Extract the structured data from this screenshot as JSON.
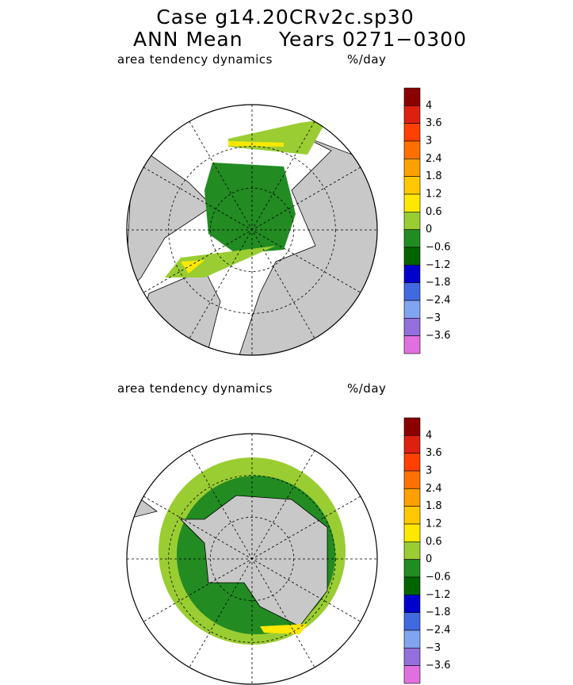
{
  "header": {
    "title": "Case g14.20CRv2c.sp30",
    "subtitle_left": "ANN Mean",
    "subtitle_right": "Years 0271−0300"
  },
  "colorbar": {
    "colors": [
      "#8b0000",
      "#dd2010",
      "#ff4000",
      "#ff7000",
      "#ffa000",
      "#ffc800",
      "#ffe800",
      "#9acd32",
      "#228b22",
      "#006400",
      "#0000cd",
      "#4169e1",
      "#80a4f0",
      "#9370db",
      "#e070e0"
    ]
  },
  "panels": [
    {
      "label": "area tendency dynamics",
      "units": "%/day",
      "colorbar_labels": [
        "4",
        "3.6",
        "3",
        "2.4",
        "1.8",
        "1.2",
        "0.6",
        "0",
        "−0.6",
        "−1.2",
        "−1.8",
        "−2.4",
        "−3",
        "−3.6"
      ]
    },
    {
      "label": "area tendency dynamics",
      "units": "%/day",
      "colorbar_labels": [
        "4",
        "3.6",
        "3",
        "2.4",
        "1.8",
        "1.2",
        "0.6",
        "0",
        "−0.6",
        "−1.2",
        "−1.8",
        "−2.4",
        "−3",
        "−3.6"
      ]
    }
  ]
}
